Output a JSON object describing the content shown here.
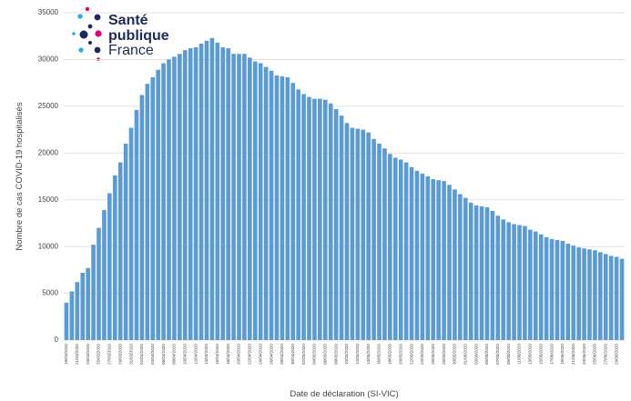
{
  "logo": {
    "line1": "Santé",
    "line2": "publique",
    "line3": "France"
  },
  "chart_data": {
    "type": "bar",
    "y_label": "Nombre de  cas COVID-19 hospitalisés",
    "x_label": "Date de déclaration (SI-VIC)",
    "color": "#5b9bd5",
    "grid": true,
    "ylim": [
      0,
      35000
    ],
    "yticks": [
      0,
      5000,
      10000,
      15000,
      20000,
      25000,
      30000,
      35000
    ],
    "categories": [
      "19/03/2020",
      null,
      "21/03/2020",
      null,
      "23/03/2020",
      null,
      "25/03/2020",
      null,
      "27/03/2020",
      null,
      "29/03/2020",
      null,
      "31/03/2020",
      null,
      "02/04/2020",
      null,
      "04/04/2020",
      null,
      "06/04/2020",
      null,
      "08/04/2020",
      null,
      "10/04/2020",
      null,
      "12/04/2020",
      null,
      "14/04/2020",
      null,
      "16/04/2020",
      null,
      "18/04/2020",
      null,
      "20/04/2020",
      null,
      "22/04/2020",
      null,
      "24/04/2020",
      null,
      "26/04/2020",
      null,
      "28/04/2020",
      null,
      "30/04/2020",
      null,
      "02/05/2020",
      null,
      "04/05/2020",
      null,
      "06/05/2020",
      null,
      "08/05/2020",
      null,
      "10/05/2020",
      null,
      "12/05/2020",
      null,
      "14/05/2020",
      null,
      "16/05/2020",
      null,
      "18/05/2020",
      null,
      "20/05/2020",
      null,
      "22/05/2020",
      null,
      "24/05/2020",
      null,
      "26/05/2020",
      null,
      "28/05/2020",
      null,
      "30/05/2020",
      null,
      "01/06/2020",
      null,
      "03/06/2020",
      null,
      "05/06/2020",
      null,
      "07/06/2020",
      null,
      "09/06/2020",
      null,
      "11/06/2020",
      null,
      "13/06/2020",
      null,
      "15/06/2020",
      null,
      "17/06/2020",
      null,
      "19/06/2020",
      null,
      "21/06/2020",
      null,
      "23/06/2020",
      null,
      "25/06/2020",
      null,
      "27/06/2020",
      null,
      "29/06/2020",
      null
    ],
    "values": [
      4000,
      5200,
      6200,
      7200,
      7700,
      10200,
      12000,
      13900,
      15700,
      17600,
      19000,
      21000,
      22700,
      24600,
      26200,
      27400,
      28100,
      28900,
      29600,
      30000,
      30300,
      30600,
      31000,
      31200,
      31300,
      31700,
      32000,
      32300,
      31800,
      31300,
      31200,
      30600,
      30600,
      30600,
      30200,
      29800,
      29600,
      29200,
      28800,
      28300,
      28200,
      28100,
      27500,
      26800,
      26300,
      26000,
      25800,
      25800,
      25700,
      25300,
      24700,
      24000,
      23200,
      22700,
      22600,
      22500,
      22200,
      21500,
      21000,
      20500,
      19900,
      19500,
      19300,
      19000,
      18500,
      18100,
      17800,
      17500,
      17200,
      17100,
      17000,
      16600,
      16100,
      15600,
      15200,
      14700,
      14400,
      14300,
      14200,
      13800,
      13300,
      12900,
      12600,
      12400,
      12300,
      12200,
      11800,
      11600,
      11300,
      11000,
      10800,
      10700,
      10600,
      10300,
      10100,
      9900,
      9800,
      9700,
      9600,
      9400,
      9200,
      9000,
      8900,
      8700
    ]
  }
}
